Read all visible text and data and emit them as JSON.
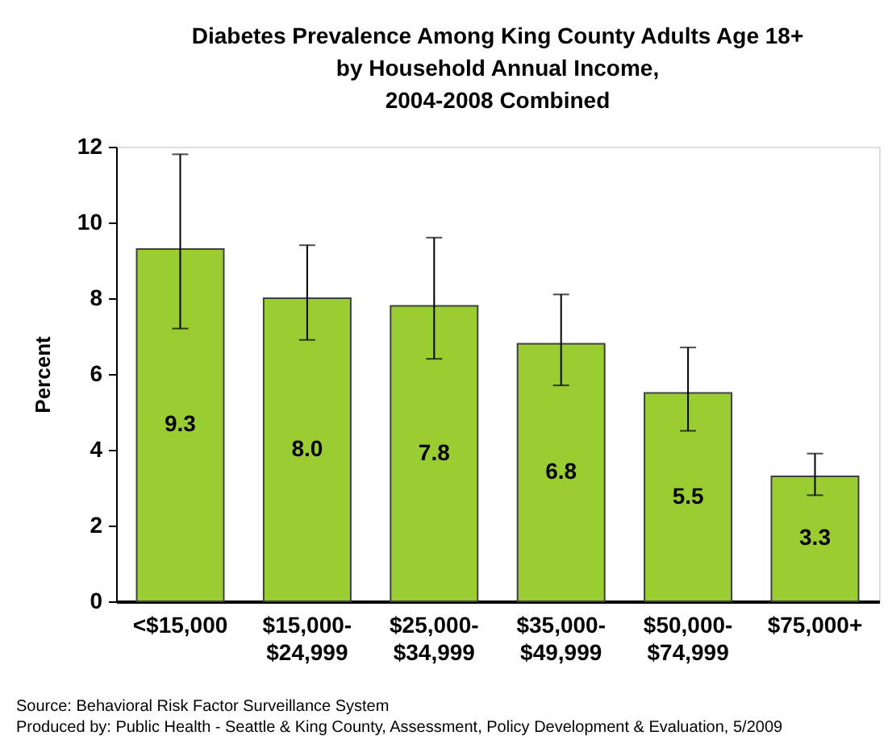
{
  "chart_data": {
    "type": "bar",
    "title": "Diabetes Prevalence Among King County Adults Age 18+\nby Household Annual Income,\n2004-2008 Combined",
    "ylabel": "Percent",
    "categories": [
      "<$15,000",
      "$15,000-\n$24,999",
      "$25,000-\n$34,999",
      "$35,000-\n$49,999",
      "$50,000-\n$74,999",
      "$75,000+"
    ],
    "values": [
      9.3,
      8.0,
      7.8,
      6.8,
      5.5,
      3.3
    ],
    "errors": [
      [
        7.2,
        11.8
      ],
      [
        6.9,
        9.4
      ],
      [
        6.4,
        9.6
      ],
      [
        5.7,
        8.1
      ],
      [
        4.5,
        6.7
      ],
      [
        2.8,
        3.9
      ]
    ],
    "color": "#9acd32",
    "value_labels": [
      "9.3",
      "8.0",
      "7.8",
      "6.8",
      "5.5",
      "3.3"
    ],
    "ylim": [
      0,
      12
    ],
    "yticks": [
      0,
      2,
      4,
      6,
      8,
      10,
      12
    ],
    "grid": false,
    "annotations": [
      "Source: Behavioral Risk Factor Surveillance System",
      "Produced by: Public Health - Seattle & King County, Assessment, Policy Development & Evaluation, 5/2009"
    ]
  }
}
